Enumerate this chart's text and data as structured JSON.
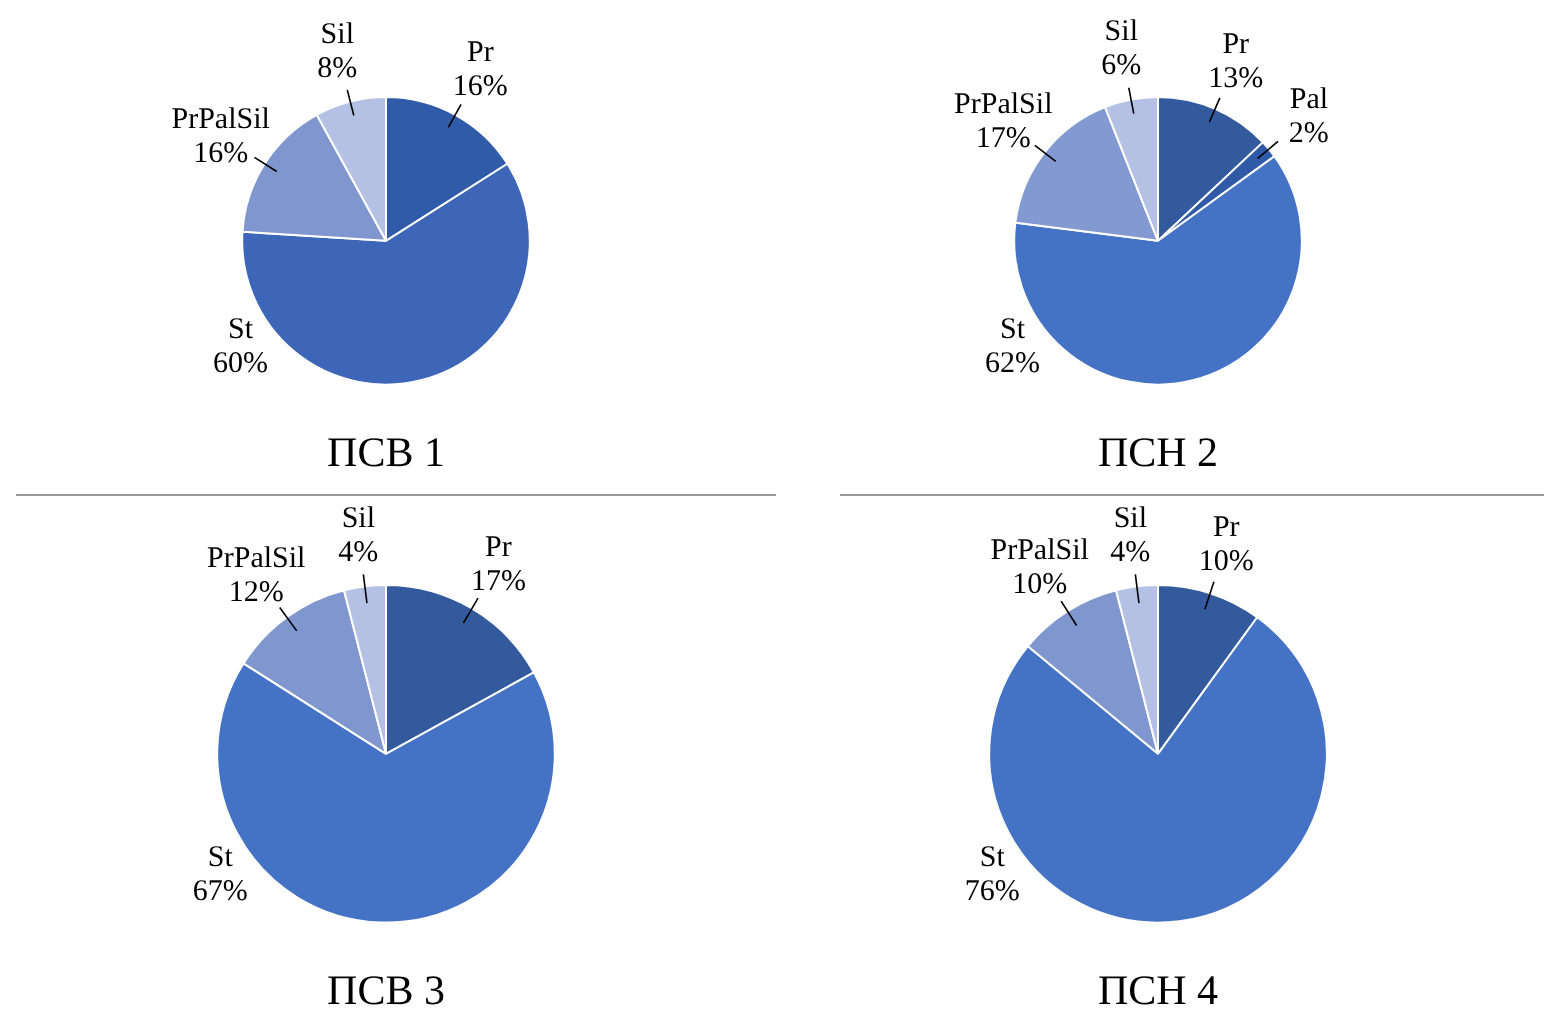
{
  "chart_data": [
    {
      "type": "pie",
      "title": "ПСВ 1",
      "categories": [
        "Pr",
        "St",
        "PrPalSil",
        "Sil"
      ],
      "values": [
        16,
        60,
        16,
        8
      ],
      "value_labels": [
        "16%",
        "60%",
        "16%",
        "8%"
      ],
      "colors": [
        "#2f5ba8",
        "#3d66b8",
        "#7f96cf",
        "#b4c1e4"
      ]
    },
    {
      "type": "pie",
      "title": "ПСН 2",
      "categories": [
        "Pr",
        "Pal",
        "St",
        "PrPalSil",
        "Sil"
      ],
      "values": [
        13,
        2,
        62,
        17,
        6
      ],
      "value_labels": [
        "13%",
        "2%",
        "62%",
        "17%",
        "6%"
      ],
      "colors": [
        "#345a9e",
        "#2e5aa8",
        "#4472c4",
        "#8399d2",
        "#b4c1e4"
      ]
    },
    {
      "type": "pie",
      "title": "ПСВ 3",
      "categories": [
        "Pr",
        "St",
        "PrPalSil",
        "Sil"
      ],
      "values": [
        17,
        67,
        12,
        4
      ],
      "value_labels": [
        "17%",
        "67%",
        "12%",
        "4%"
      ],
      "colors": [
        "#345a9e",
        "#4472c4",
        "#7f96cf",
        "#b4c1e4"
      ]
    },
    {
      "type": "pie",
      "title": "ПСН 4",
      "categories": [
        "Pr",
        "St",
        "PrPalSil",
        "Sil"
      ],
      "values": [
        10,
        76,
        10,
        4
      ],
      "value_labels": [
        "10%",
        "76%",
        "10%",
        "4%"
      ],
      "colors": [
        "#345a9e",
        "#4472c4",
        "#7f96cf",
        "#b4c1e4"
      ]
    }
  ]
}
